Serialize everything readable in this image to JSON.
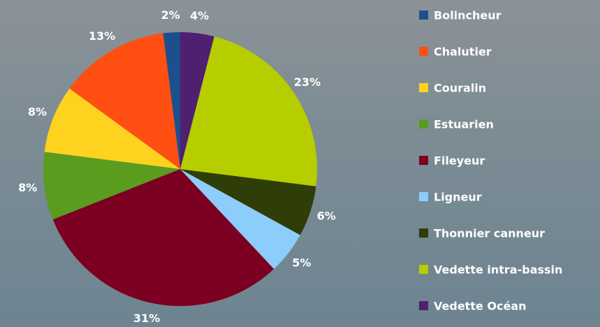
{
  "chart_data": {
    "type": "pie",
    "categories": [
      "Bolincheur",
      "Chalutier",
      "Couralin",
      "Estuarien",
      "Fileyeur",
      "Ligneur",
      "Thonnier canneur",
      "Vedette intra-bassin",
      "Vedette Océan"
    ],
    "values": [
      2,
      13,
      8,
      8,
      31,
      5,
      6,
      23,
      4
    ],
    "value_labels": [
      "2%",
      "13%",
      "8%",
      "8%",
      "31%",
      "5%",
      "6%",
      "23%",
      "4%"
    ],
    "colors": [
      "#1d4f8c",
      "#ff4f12",
      "#ffd21f",
      "#5a9c1e",
      "#7b0021",
      "#8ccdfb",
      "#2f3d07",
      "#b6cd00",
      "#4f1f70"
    ],
    "start": "top",
    "direction": "counterclockwise",
    "legend": "right"
  }
}
